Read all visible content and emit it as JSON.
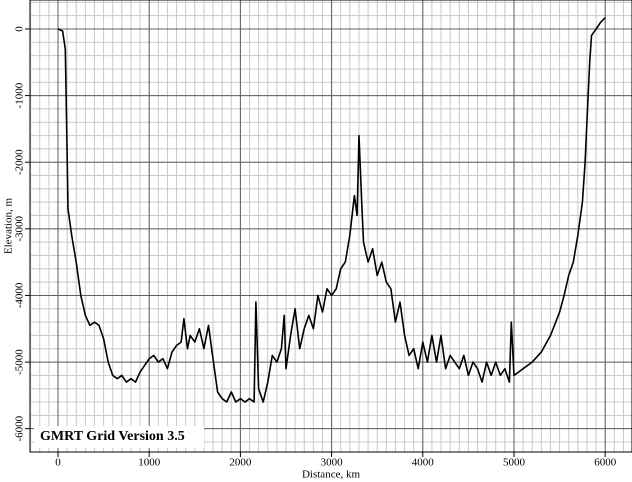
{
  "chart_data": {
    "type": "line",
    "x_label": "Distance, km",
    "y_label": "Elevation, m",
    "annotation": "GMRT Grid Version 3.5",
    "xlim": [
      -307,
      6294
    ],
    "ylim": [
      -6350,
      435
    ],
    "xticks": [
      0,
      1000,
      2000,
      3000,
      4000,
      5000,
      6000
    ],
    "yticks": [
      0,
      -1000,
      -2000,
      -3000,
      -4000,
      -5000,
      -6000
    ],
    "grid": true,
    "grid_minor": {
      "x": 100,
      "y": 200
    },
    "series": [
      {
        "name": null,
        "color": "#000000",
        "x": [
          0,
          50,
          80,
          95,
          110,
          150,
          200,
          250,
          300,
          350,
          400,
          450,
          500,
          550,
          600,
          650,
          700,
          750,
          800,
          850,
          900,
          950,
          1000,
          1050,
          1100,
          1150,
          1200,
          1250,
          1300,
          1350,
          1380,
          1420,
          1450,
          1500,
          1550,
          1600,
          1650,
          1700,
          1750,
          1800,
          1850,
          1900,
          1950,
          2000,
          2050,
          2100,
          2150,
          2170,
          2200,
          2250,
          2300,
          2350,
          2400,
          2450,
          2480,
          2500,
          2550,
          2600,
          2650,
          2700,
          2750,
          2800,
          2850,
          2900,
          2950,
          3000,
          3050,
          3100,
          3150,
          3200,
          3250,
          3280,
          3300,
          3330,
          3350,
          3400,
          3450,
          3500,
          3550,
          3600,
          3650,
          3700,
          3750,
          3800,
          3850,
          3900,
          3950,
          4000,
          4050,
          4100,
          4150,
          4200,
          4250,
          4300,
          4350,
          4400,
          4450,
          4500,
          4550,
          4600,
          4650,
          4700,
          4750,
          4800,
          4850,
          4900,
          4950,
          4970,
          5000,
          5050,
          5100,
          5200,
          5300,
          5400,
          5500,
          5550,
          5600,
          5650,
          5700,
          5750,
          5780,
          5800,
          5830,
          5850,
          5900,
          5950,
          6000
        ],
        "values": [
          0,
          -30,
          -300,
          -1500,
          -2700,
          -3100,
          -3500,
          -4000,
          -4300,
          -4450,
          -4400,
          -4450,
          -4650,
          -5000,
          -5200,
          -5250,
          -5200,
          -5300,
          -5250,
          -5300,
          -5150,
          -5050,
          -4950,
          -4900,
          -5000,
          -4950,
          -5100,
          -4850,
          -4750,
          -4700,
          -4350,
          -4800,
          -4600,
          -4700,
          -4500,
          -4800,
          -4450,
          -4950,
          -5450,
          -5550,
          -5600,
          -5450,
          -5600,
          -5550,
          -5600,
          -5550,
          -5600,
          -4100,
          -5400,
          -5600,
          -5300,
          -4900,
          -5000,
          -4800,
          -4300,
          -5100,
          -4600,
          -4200,
          -4800,
          -4500,
          -4300,
          -4500,
          -4000,
          -4250,
          -3900,
          -4000,
          -3900,
          -3600,
          -3500,
          -3100,
          -2500,
          -2800,
          -1600,
          -2600,
          -3200,
          -3500,
          -3300,
          -3700,
          -3500,
          -3800,
          -3900,
          -4400,
          -4100,
          -4600,
          -4900,
          -4800,
          -5100,
          -4700,
          -5000,
          -4600,
          -5000,
          -4600,
          -5100,
          -4900,
          -5000,
          -5100,
          -4900,
          -5200,
          -5000,
          -5100,
          -5300,
          -5000,
          -5200,
          -5000,
          -5200,
          -5100,
          -5300,
          -4400,
          -5200,
          -5150,
          -5100,
          -5000,
          -4850,
          -4600,
          -4250,
          -4000,
          -3700,
          -3500,
          -3100,
          -2600,
          -2000,
          -1400,
          -500,
          -100,
          0,
          100,
          170
        ]
      }
    ]
  }
}
